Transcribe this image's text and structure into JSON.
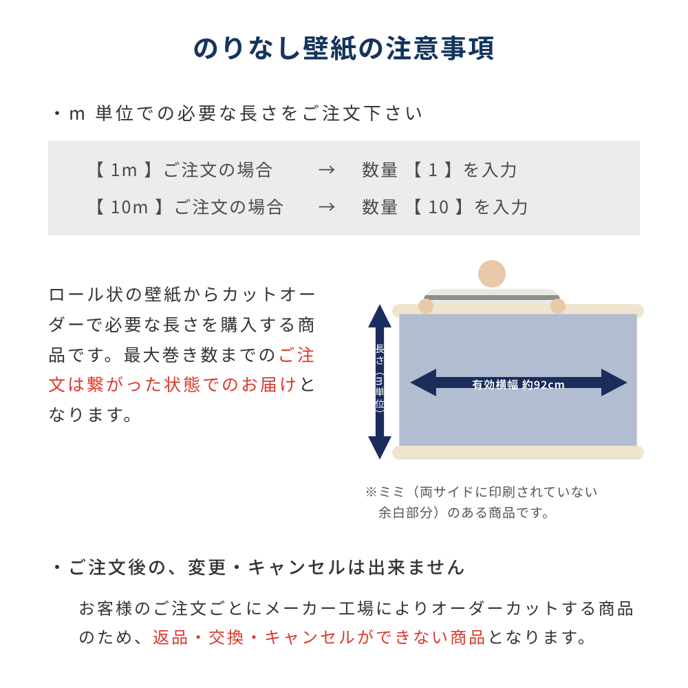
{
  "colors": {
    "title": "#15345e",
    "text": "#333333",
    "highlight": "#d93a2e",
    "box_bg": "#ececec",
    "arrow": "#1a2d5c",
    "roll_body": "#b3bdd1",
    "roll_edge": "#efe5ce"
  },
  "title": "のりなし壁紙の注意事項",
  "bullet1": "・m 単位での必要な長さをご注文下さい",
  "examples": [
    {
      "left": "【 1m 】ご注文の場合",
      "arrow": "→",
      "right": "数量 【 1 】を入力"
    },
    {
      "left": "【 10m 】ご注文の場合",
      "arrow": "→",
      "right": "数量 【 10 】を入力"
    }
  ],
  "mid": {
    "pre": "ロール状の壁紙からカットオーダーで必要な長さを購入する商品です。最大巻き数までの",
    "red": "ご注文は繋がった状態でのお届け",
    "post": "となります。"
  },
  "illustration": {
    "v_label": "長さ（m単位）",
    "h_label": "有効横幅 約92cm"
  },
  "note": "※ミミ（両サイドに印刷されていない\n　余白部分）のある商品です。",
  "bullet2": "・ご注文後の、変更・キャンセルは出来ません",
  "bottom": {
    "pre": "お客様のご注文ごとにメーカー工場によりオーダーカットする商品のため、",
    "red": "返品・交換・キャンセルができない商品",
    "post": "となります。"
  }
}
